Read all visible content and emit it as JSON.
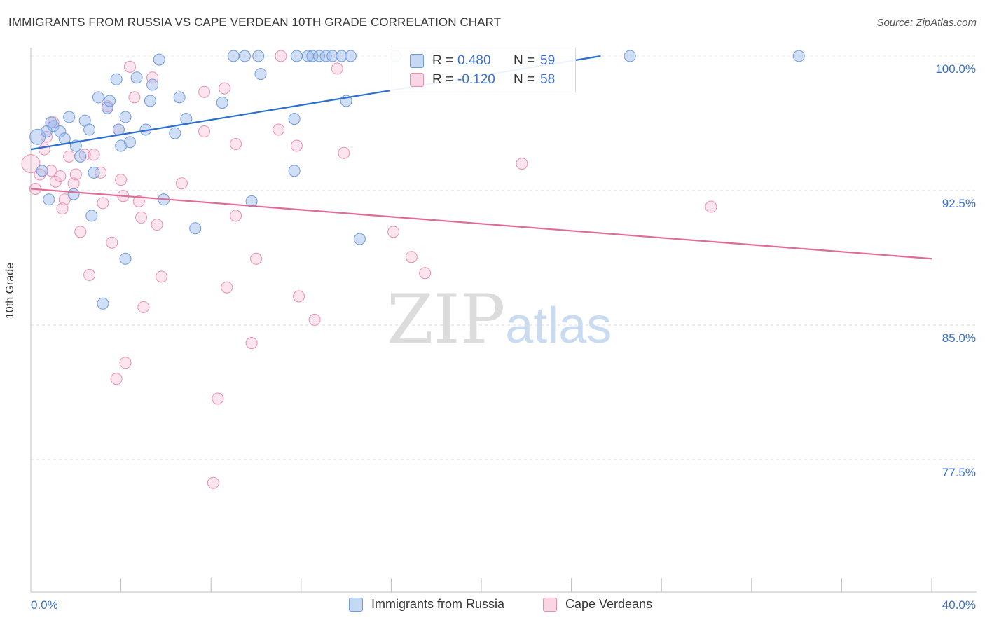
{
  "title": "IMMIGRANTS FROM RUSSIA VS CAPE VERDEAN 10TH GRADE CORRELATION CHART",
  "source": "Source: ZipAtlas.com",
  "watermark": {
    "zip": "ZIP",
    "atlas": "atlas"
  },
  "colors": {
    "blue": "#6f9be0",
    "blue_fill": "rgba(150,185,235,0.45)",
    "blue_line": "#2a6fd0",
    "pink": "#ea8fb0",
    "pink_fill": "rgba(245,180,205,0.35)",
    "pink_line": "#e06a98",
    "tick_text": "#3a6fd0"
  },
  "stats_legend": [
    {
      "r_label": "R =",
      "r_value": "0.480",
      "n_label": "N =",
      "n_value": "59"
    },
    {
      "r_label": "R =",
      "r_value": "-0.120",
      "n_label": "N =",
      "n_value": "58"
    }
  ],
  "chart_data": {
    "type": "scatter",
    "title": "IMMIGRANTS FROM RUSSIA VS CAPE VERDEAN 10TH GRADE CORRELATION CHART",
    "xlabel": "",
    "ylabel": "10th Grade",
    "xlim": [
      0,
      40
    ],
    "ylim": [
      70.0,
      100.5
    ],
    "x_tick_labels": [
      "0.0%",
      "40.0%"
    ],
    "y_ticks": [
      77.5,
      85.0,
      92.5,
      100.0
    ],
    "y_tick_labels": [
      "77.5%",
      "85.0%",
      "92.5%",
      "100.0%"
    ],
    "grid": true,
    "legend_position": "bottom",
    "series": [
      {
        "name": "Immigrants from Russia",
        "color": "#6f9be0",
        "trend": {
          "x": [
            0,
            25.3
          ],
          "y": [
            94.8,
            100.0
          ]
        },
        "points": [
          [
            0.3,
            95.5
          ],
          [
            0.5,
            93.6
          ],
          [
            0.7,
            95.8
          ],
          [
            0.8,
            92.0
          ],
          [
            0.9,
            96.3
          ],
          [
            1.0,
            96.1
          ],
          [
            1.3,
            95.8
          ],
          [
            1.5,
            95.4
          ],
          [
            1.7,
            96.6
          ],
          [
            1.9,
            92.3
          ],
          [
            2.0,
            95.0
          ],
          [
            2.2,
            94.4
          ],
          [
            2.4,
            96.4
          ],
          [
            2.6,
            95.9
          ],
          [
            2.7,
            91.1
          ],
          [
            2.8,
            93.5
          ],
          [
            3.0,
            97.7
          ],
          [
            3.2,
            86.2
          ],
          [
            3.4,
            97.1
          ],
          [
            3.5,
            97.5
          ],
          [
            3.8,
            98.7
          ],
          [
            3.9,
            95.9
          ],
          [
            4.0,
            95.0
          ],
          [
            4.2,
            96.6
          ],
          [
            4.2,
            88.7
          ],
          [
            4.4,
            95.2
          ],
          [
            4.7,
            98.8
          ],
          [
            5.1,
            95.9
          ],
          [
            5.3,
            97.5
          ],
          [
            5.4,
            98.4
          ],
          [
            5.7,
            99.8
          ],
          [
            5.9,
            92.0
          ],
          [
            6.6,
            97.7
          ],
          [
            6.4,
            95.7
          ],
          [
            6.9,
            96.5
          ],
          [
            7.3,
            90.4
          ],
          [
            8.5,
            97.4
          ],
          [
            9.0,
            100.0
          ],
          [
            9.5,
            100.0
          ],
          [
            9.8,
            91.9
          ],
          [
            10.1,
            100.0
          ],
          [
            10.2,
            99.0
          ],
          [
            11.7,
            96.5
          ],
          [
            11.7,
            93.6
          ],
          [
            11.8,
            100.0
          ],
          [
            12.3,
            100.0
          ],
          [
            12.5,
            100.0
          ],
          [
            12.8,
            100.0
          ],
          [
            13.1,
            100.0
          ],
          [
            13.4,
            100.0
          ],
          [
            13.8,
            100.0
          ],
          [
            14.0,
            97.5
          ],
          [
            14.2,
            100.0
          ],
          [
            14.6,
            89.8
          ],
          [
            16.2,
            100.0
          ],
          [
            18.0,
            100.0
          ],
          [
            22.0,
            100.0
          ],
          [
            26.6,
            100.0
          ],
          [
            34.1,
            100.0
          ]
        ]
      },
      {
        "name": "Cape Verdeans",
        "color": "#ea8fb0",
        "trend": {
          "x": [
            0,
            40
          ],
          "y": [
            92.6,
            88.7
          ]
        },
        "points": [
          [
            0.2,
            92.6
          ],
          [
            0.4,
            93.4
          ],
          [
            0.6,
            94.8
          ],
          [
            0.7,
            95.5
          ],
          [
            0.9,
            93.6
          ],
          [
            1.0,
            96.3
          ],
          [
            1.1,
            93.0
          ],
          [
            1.3,
            93.3
          ],
          [
            1.4,
            91.5
          ],
          [
            1.5,
            92.0
          ],
          [
            1.7,
            94.4
          ],
          [
            1.9,
            92.9
          ],
          [
            2.0,
            93.4
          ],
          [
            2.2,
            90.2
          ],
          [
            2.4,
            94.5
          ],
          [
            2.6,
            87.8
          ],
          [
            2.8,
            94.5
          ],
          [
            3.1,
            93.5
          ],
          [
            3.2,
            91.8
          ],
          [
            3.4,
            97.2
          ],
          [
            3.6,
            89.6
          ],
          [
            3.8,
            82.0
          ],
          [
            3.9,
            95.9
          ],
          [
            4.0,
            93.1
          ],
          [
            4.1,
            92.2
          ],
          [
            4.2,
            82.9
          ],
          [
            4.4,
            99.4
          ],
          [
            4.6,
            97.7
          ],
          [
            4.8,
            91.9
          ],
          [
            4.9,
            91.0
          ],
          [
            5.0,
            86.0
          ],
          [
            5.4,
            98.8
          ],
          [
            5.6,
            90.6
          ],
          [
            5.8,
            87.7
          ],
          [
            6.7,
            92.9
          ],
          [
            7.7,
            95.8
          ],
          [
            7.7,
            98.0
          ],
          [
            8.1,
            76.2
          ],
          [
            8.3,
            80.9
          ],
          [
            8.6,
            98.2
          ],
          [
            8.7,
            87.1
          ],
          [
            9.1,
            91.1
          ],
          [
            9.1,
            95.1
          ],
          [
            9.8,
            84.0
          ],
          [
            10.0,
            88.7
          ],
          [
            11.0,
            95.9
          ],
          [
            11.1,
            100.0
          ],
          [
            11.8,
            95.0
          ],
          [
            11.9,
            86.6
          ],
          [
            12.6,
            85.3
          ],
          [
            13.6,
            99.3
          ],
          [
            13.9,
            94.6
          ],
          [
            16.1,
            90.2
          ],
          [
            16.9,
            88.8
          ],
          [
            17.5,
            87.9
          ],
          [
            21.8,
            94.0
          ],
          [
            30.2,
            91.6
          ],
          [
            0.0,
            94.0
          ]
        ]
      }
    ]
  }
}
